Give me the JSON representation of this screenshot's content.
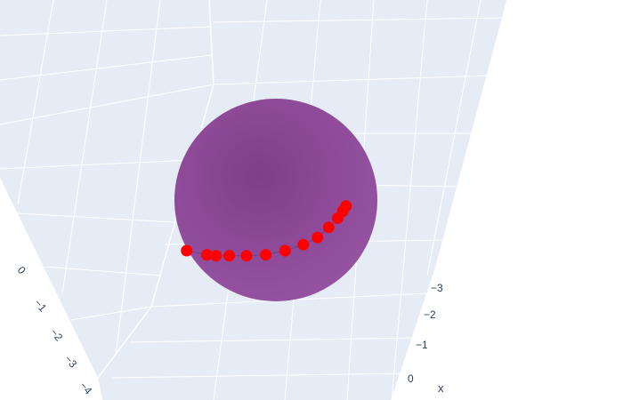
{
  "chart_data": {
    "type": "scatter3d",
    "surface": {
      "shape": "sphere",
      "color": "#7b2a8a",
      "opacity": 0.85
    },
    "trace": {
      "color": "#ff0000"
    },
    "points": [
      {
        "u": -0.88,
        "v": 0.5
      },
      {
        "u": -0.68,
        "v": 0.54
      },
      {
        "u": -0.59,
        "v": 0.55
      },
      {
        "u": -0.46,
        "v": 0.55
      },
      {
        "u": -0.29,
        "v": 0.55
      },
      {
        "u": -0.1,
        "v": 0.54
      },
      {
        "u": 0.09,
        "v": 0.5
      },
      {
        "u": 0.27,
        "v": 0.44
      },
      {
        "u": 0.41,
        "v": 0.37
      },
      {
        "u": 0.52,
        "v": 0.27
      },
      {
        "u": 0.61,
        "v": 0.18
      },
      {
        "u": 0.66,
        "v": 0.11
      },
      {
        "u": 0.69,
        "v": 0.06
      }
    ],
    "x_axis": {
      "title": "x",
      "ticks": [
        "−3",
        "−2",
        "−1",
        "0"
      ]
    },
    "y_axis": {
      "title": "",
      "ticks": [
        "0",
        "−1",
        "−2",
        "−3",
        "−4"
      ]
    },
    "grid": true,
    "background": "#e5ecf6"
  }
}
